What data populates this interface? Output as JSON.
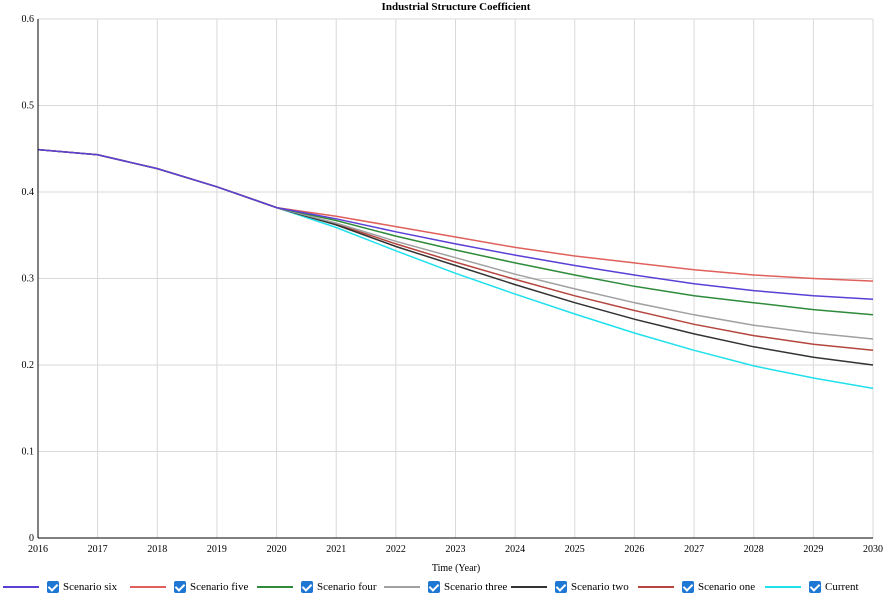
{
  "chart_data": {
    "type": "line",
    "title": "Industrial Structure Coefficient",
    "xlabel": "Time (Year)",
    "ylabel": "",
    "xlim": [
      2016,
      2030
    ],
    "ylim": [
      0,
      0.6
    ],
    "x_ticks": [
      "2016",
      "2017",
      "2018",
      "2019",
      "2020",
      "2021",
      "2022",
      "2023",
      "2024",
      "2025",
      "2026",
      "2027",
      "2028",
      "2029",
      "2030"
    ],
    "y_ticks": [
      "0",
      "0.1",
      "0.2",
      "0.3",
      "0.4",
      "0.5",
      "0.6"
    ],
    "grid": true,
    "legend_position": "bottom",
    "x": [
      2016,
      2017,
      2018,
      2019,
      2020,
      2021,
      2022,
      2023,
      2024,
      2025,
      2026,
      2027,
      2028,
      2029,
      2030
    ],
    "series": [
      {
        "name": "Scenario six",
        "color": "#5b3fd6",
        "values": [
          0.449,
          0.443,
          0.427,
          0.406,
          0.382,
          0.369,
          0.354,
          0.34,
          0.327,
          0.315,
          0.304,
          0.294,
          0.286,
          0.28,
          0.276
        ]
      },
      {
        "name": "Scenario five",
        "color": "#e0605c",
        "values": [
          0.449,
          0.443,
          0.427,
          0.406,
          0.382,
          0.372,
          0.36,
          0.348,
          0.336,
          0.326,
          0.318,
          0.31,
          0.304,
          0.3,
          0.297
        ]
      },
      {
        "name": "Scenario four",
        "color": "#2e8b3a",
        "values": [
          0.449,
          0.443,
          0.427,
          0.406,
          0.382,
          0.367,
          0.349,
          0.333,
          0.318,
          0.304,
          0.291,
          0.28,
          0.272,
          0.264,
          0.258
        ]
      },
      {
        "name": "Scenario three",
        "color": "#a0a0a0",
        "values": [
          0.449,
          0.443,
          0.427,
          0.406,
          0.382,
          0.364,
          0.343,
          0.324,
          0.305,
          0.288,
          0.272,
          0.258,
          0.246,
          0.237,
          0.23
        ]
      },
      {
        "name": "Scenario two",
        "color": "#333333",
        "values": [
          0.449,
          0.443,
          0.427,
          0.406,
          0.382,
          0.362,
          0.337,
          0.315,
          0.293,
          0.272,
          0.253,
          0.236,
          0.221,
          0.209,
          0.2
        ]
      },
      {
        "name": "Scenario one",
        "color": "#b5453e",
        "values": [
          0.449,
          0.443,
          0.427,
          0.406,
          0.382,
          0.363,
          0.34,
          0.319,
          0.299,
          0.28,
          0.263,
          0.247,
          0.234,
          0.224,
          0.217
        ]
      },
      {
        "name": "Current",
        "color": "#1fe0ec",
        "values": [
          0.449,
          0.443,
          0.427,
          0.406,
          0.382,
          0.359,
          0.332,
          0.306,
          0.282,
          0.259,
          0.237,
          0.217,
          0.199,
          0.185,
          0.173
        ]
      }
    ]
  }
}
